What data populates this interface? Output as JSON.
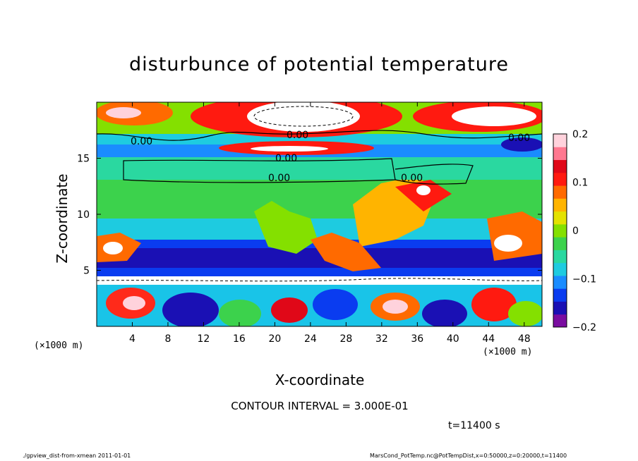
{
  "chart_data": {
    "type": "heatmap",
    "title": "disturbunce of potential temperature",
    "xlabel": "X-coordinate",
    "ylabel": "Z-coordinate",
    "x_unit": "(×1000 m)",
    "xlim": [
      0,
      50
    ],
    "ylim": [
      0,
      20
    ],
    "x_ticks": [
      4,
      8,
      12,
      16,
      20,
      24,
      28,
      32,
      36,
      40,
      44,
      48
    ],
    "y_ticks": [
      5,
      10,
      15
    ],
    "colorbar": {
      "range": [
        -0.2,
        0.2
      ],
      "ticks": [
        0.2,
        0.1,
        0,
        -0.1,
        -0.2
      ],
      "tick_labels": [
        "0.2",
        "0.1",
        "0",
        "−0.1",
        "−0.2"
      ],
      "colors": [
        "#7a0da0",
        "#1a10b4",
        "#0a3cf0",
        "#1a8cff",
        "#1ecbe0",
        "#2ad8a0",
        "#3cd24c",
        "#84e000",
        "#e4e200",
        "#ffb400",
        "#ff6a00",
        "#ff1a10",
        "#e00818",
        "#ff7890",
        "#ffd2dc"
      ]
    },
    "contour_labels": [
      "0.00",
      "0.00",
      "0.00",
      "0.00",
      "0.00",
      "0.00"
    ],
    "contour_interval": "CONTOUR INTERVAL = 3.000E-01",
    "time": "t=11400 s"
  },
  "footer": {
    "left": "./gpview_dist-from-xmean   2011-01-01",
    "right": "MarsCond_PotTemp.nc@PotTempDist,x=0:50000,z=0:20000,t=11400"
  }
}
